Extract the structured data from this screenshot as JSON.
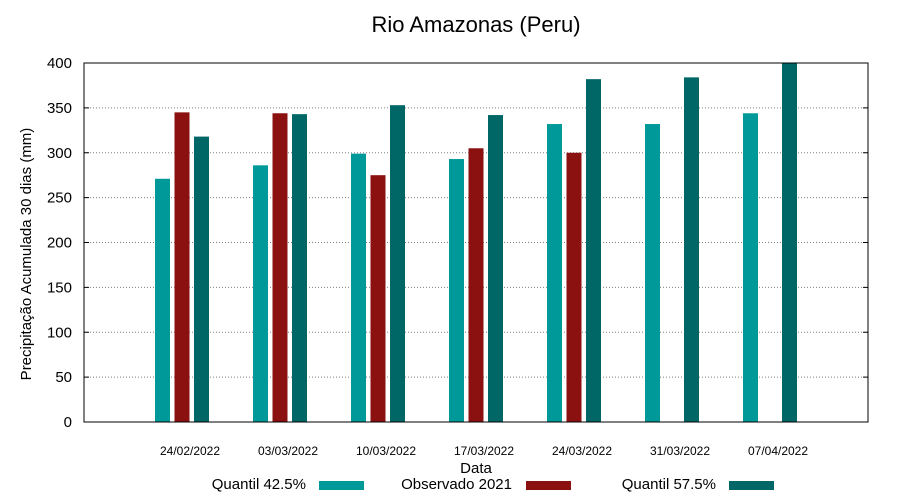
{
  "chart_data": {
    "type": "bar",
    "title": "Rio Amazonas (Peru)",
    "xlabel": "Data",
    "ylabel": "Precipitação Acumulada 30 dias (mm)",
    "ylim": [
      0,
      400
    ],
    "yticks": [
      0,
      50,
      100,
      150,
      200,
      250,
      300,
      350,
      400
    ],
    "grid": true,
    "legend_position": "bottom",
    "categories": [
      "24/02/2022",
      "03/03/2022",
      "10/03/2022",
      "17/03/2022",
      "24/03/2022",
      "31/03/2022",
      "07/04/2022"
    ],
    "series": [
      {
        "name": "Quantil 42.5%",
        "color": "#009999",
        "values": [
          271,
          286,
          299,
          293,
          332,
          332,
          344
        ]
      },
      {
        "name": "Observado 2021",
        "color": "#8b1111",
        "values": [
          345,
          344,
          275,
          305,
          300,
          null,
          null
        ]
      },
      {
        "name": "Quantil 57.5%",
        "color": "#006666",
        "values": [
          318,
          343,
          353,
          342,
          382,
          384,
          400
        ]
      }
    ]
  }
}
